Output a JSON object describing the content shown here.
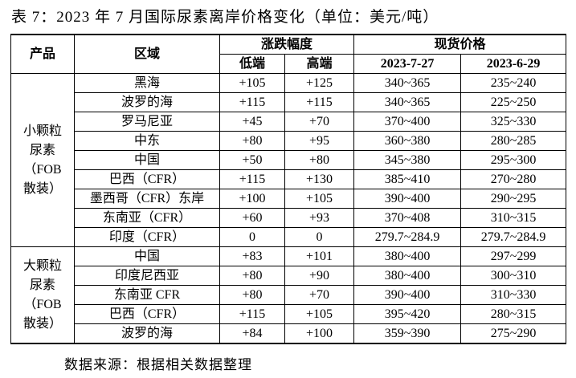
{
  "title": "表 7：2023 年 7 月国际尿素离岸价格变化（单位：美元/吨）",
  "header": {
    "product": "产品",
    "region": "区域",
    "change": "涨跌幅度",
    "low": "低端",
    "high": "高端",
    "spot": "现货价格",
    "date1": "2023-7-27",
    "date2": "2023-6-29"
  },
  "groups": [
    {
      "label_lines": [
        "小颗粒",
        "尿素",
        "（FOB",
        "散装）"
      ],
      "rows": [
        [
          "黑海",
          "+105",
          "+125",
          "340~365",
          "235~240"
        ],
        [
          "波罗的海",
          "+115",
          "+115",
          "340~365",
          "225~250"
        ],
        [
          "罗马尼亚",
          "+45",
          "+70",
          "370~400",
          "325~330"
        ],
        [
          "中东",
          "+80",
          "+95",
          "360~380",
          "280~285"
        ],
        [
          "中国",
          "+50",
          "+80",
          "345~380",
          "295~300"
        ],
        [
          "巴西（CFR）",
          "+115",
          "+130",
          "385~410",
          "270~280"
        ],
        [
          "墨西哥（CFR）东岸",
          "+100",
          "+105",
          "390~400",
          "290~295"
        ],
        [
          "东南亚（CFR）",
          "+60",
          "+93",
          "370~408",
          "310~315"
        ],
        [
          "印度（CFR）",
          "0",
          "0",
          "279.7~284.9",
          "279.7~284.9"
        ]
      ]
    },
    {
      "label_lines": [
        "大颗粒",
        "尿素",
        "（FOB",
        "散装）"
      ],
      "rows": [
        [
          "中国",
          "+83",
          "+101",
          "380~400",
          "297~299"
        ],
        [
          "印度尼西亚",
          "+80",
          "+90",
          "380~400",
          "300~310"
        ],
        [
          "东南亚 CFR",
          "+80",
          "+70",
          "390~400",
          "310~330"
        ],
        [
          "巴西（CFR）",
          "+115",
          "+105",
          "395~420",
          "280~315"
        ],
        [
          "波罗的海",
          "+84",
          "+100",
          "359~390",
          "275~290"
        ]
      ]
    }
  ],
  "source": "数据来源：根据相关数据整理"
}
